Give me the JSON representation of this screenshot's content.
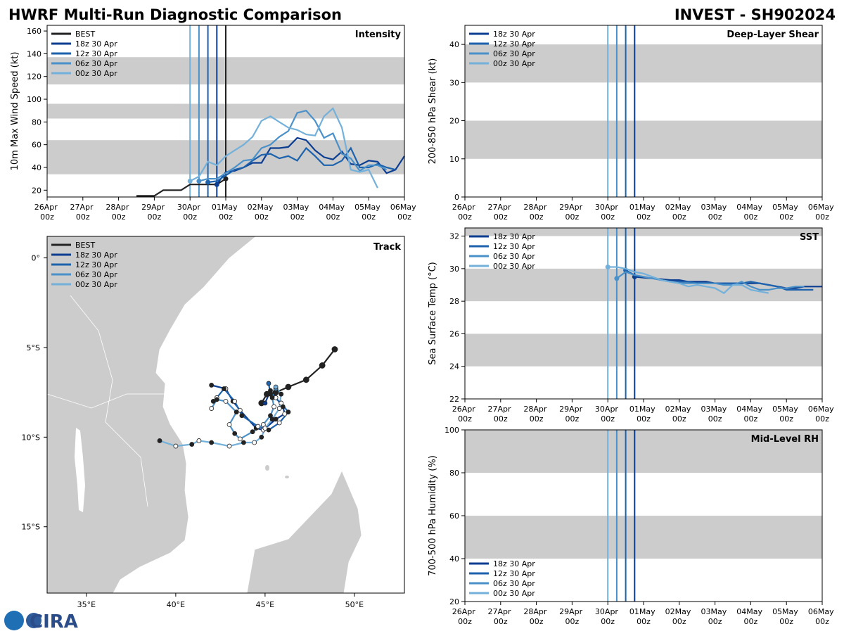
{
  "header": {
    "title": "HWRF Multi-Run Diagnostic Comparison",
    "storm": "INVEST - SH902024"
  },
  "logo": "CIRA",
  "chart_data": [
    {
      "type": "line",
      "title": "Intensity",
      "ylabel": "10m Max Wind Speed (kt)",
      "xlim": [
        "26Apr 00z",
        "06May 00z"
      ],
      "xticks": [
        "26Apr 00z",
        "27Apr 00z",
        "28Apr 00z",
        "29Apr 00z",
        "30Apr 00z",
        "01May 00z",
        "02May 00z",
        "03May 00z",
        "04May 00z",
        "05May 00z",
        "06May 00z"
      ],
      "ylim": [
        14,
        165
      ],
      "yticks": [
        20,
        40,
        60,
        80,
        100,
        120,
        140,
        160
      ],
      "bands": [
        [
          34,
          64
        ],
        [
          83,
          96
        ],
        [
          113,
          137
        ]
      ],
      "band_color": "#cccccc",
      "vlines": [
        {
          "x": "30Apr 00z",
          "color": "#74b1da"
        },
        {
          "x": "30Apr 06z",
          "color": "#4a90c9"
        },
        {
          "x": "30Apr 12z",
          "color": "#1c62ad"
        },
        {
          "x": "30Apr 18z",
          "color": "#0b3d91"
        },
        {
          "x": "01May 00z",
          "color": "#222222"
        }
      ],
      "legend": "upper left",
      "series": [
        {
          "name": "BEST",
          "color": "#222222",
          "x": [
            "28Apr 12z",
            "28Apr 18z",
            "29Apr 00z",
            "29Apr 06z",
            "29Apr 12z",
            "29Apr 18z",
            "30Apr 00z",
            "30Apr 06z",
            "30Apr 12z",
            "30Apr 18z",
            "01May 00z"
          ],
          "values": [
            15,
            15,
            15,
            20,
            20,
            20,
            25,
            25,
            25,
            25,
            30
          ]
        },
        {
          "name": "18z 30 Apr",
          "color": "#0b3d91",
          "x": [
            "30Apr 18z",
            "01May 00z",
            "01May 06z",
            "01May 12z",
            "01May 18z",
            "02May 00z",
            "02May 06z",
            "02May 12z",
            "02May 18z",
            "03May 00z",
            "03May 06z",
            "03May 12z",
            "03May 18z",
            "04May 00z",
            "04May 06z",
            "04May 12z",
            "04May 18z",
            "05May 00z",
            "05May 06z",
            "05May 12z",
            "05May 18z",
            "06May 00z"
          ],
          "values": [
            25,
            36,
            37,
            40,
            44,
            44,
            57,
            57,
            58,
            66,
            64,
            55,
            49,
            47,
            54,
            43,
            42,
            46,
            45,
            35,
            38,
            50
          ]
        },
        {
          "name": "12z 30 Apr",
          "color": "#1c62ad",
          "x": [
            "30Apr 12z",
            "30Apr 18z",
            "01May 00z",
            "01May 06z",
            "01May 12z",
            "01May 18z",
            "02May 00z",
            "02May 06z",
            "02May 12z",
            "02May 18z",
            "03May 00z",
            "03May 06z",
            "03May 12z",
            "03May 18z",
            "04May 00z",
            "04May 06z",
            "04May 12z",
            "04May 18z",
            "05May 00z",
            "05May 06z",
            "05May 12z",
            "05May 18z"
          ],
          "values": [
            27,
            28,
            33,
            38,
            40,
            46,
            51,
            52,
            48,
            50,
            46,
            57,
            50,
            42,
            42,
            46,
            57,
            40,
            40,
            43,
            40,
            38
          ]
        },
        {
          "name": "06z 30 Apr",
          "color": "#4a90c9",
          "x": [
            "30Apr 06z",
            "30Apr 12z",
            "30Apr 18z",
            "01May 00z",
            "01May 06z",
            "01May 12z",
            "01May 18z",
            "02May 00z",
            "02May 06z",
            "02May 12z",
            "02May 18z",
            "03May 00z",
            "03May 06z",
            "03May 12z",
            "03May 18z",
            "04May 00z",
            "04May 06z",
            "04May 12z",
            "04May 18z",
            "05May 00z",
            "05May 06z",
            "05May 12z"
          ],
          "values": [
            28,
            30,
            30,
            35,
            40,
            46,
            47,
            57,
            60,
            67,
            72,
            88,
            90,
            81,
            66,
            70,
            52,
            48,
            37,
            42,
            42,
            38
          ]
        },
        {
          "name": "00z 30 Apr",
          "color": "#74b1da",
          "x": [
            "30Apr 00z",
            "30Apr 06z",
            "30Apr 12z",
            "30Apr 18z",
            "01May 00z",
            "01May 06z",
            "01May 12z",
            "01May 18z",
            "02May 00z",
            "02May 06z",
            "02May 12z",
            "02May 18z",
            "03May 00z",
            "03May 06z",
            "03May 12z",
            "03May 18z",
            "04May 00z",
            "04May 06z",
            "04May 12z",
            "04May 18z",
            "05May 00z",
            "05May 06z"
          ],
          "values": [
            28,
            32,
            45,
            42,
            50,
            55,
            60,
            67,
            81,
            85,
            80,
            75,
            73,
            69,
            68,
            85,
            92,
            75,
            38,
            36,
            38,
            22
          ]
        }
      ]
    },
    {
      "type": "track",
      "title": "Track",
      "xlim": [
        32.8,
        52.8
      ],
      "ylim": [
        -18.7,
        1.2
      ],
      "xticks": [
        {
          "value": 35,
          "label": "35°E"
        },
        {
          "value": 40,
          "label": "40°E"
        },
        {
          "value": 45,
          "label": "45°E"
        },
        {
          "value": 50,
          "label": "50°E"
        }
      ],
      "yticks": [
        {
          "value": 0,
          "label": "0°"
        },
        {
          "value": -5,
          "label": "5°S"
        },
        {
          "value": -10,
          "label": "10°S"
        },
        {
          "value": -15,
          "label": "15°S"
        }
      ],
      "legend": "upper left",
      "series": [
        {
          "name": "BEST",
          "color": "#222222",
          "x": [
            48.9,
            48.2,
            47.3,
            46.3,
            45.6,
            45.1,
            44.8
          ],
          "values": [
            -5.1,
            -6.0,
            -6.8,
            -7.2,
            -7.5,
            -7.6,
            -8.1
          ]
        },
        {
          "name": "18z 30 Apr",
          "color": "#0b3d91",
          "x": [
            45.0,
            45.3,
            45.6,
            46.0,
            46.1,
            45.6,
            44.9,
            44.5,
            43.6,
            43.2,
            42.8,
            42.0
          ],
          "values": [
            -8.1,
            -7.4,
            -7.8,
            -8.3,
            -8.7,
            -9.0,
            -9.6,
            -9.5,
            -8.5,
            -8.0,
            -7.3,
            -7.1
          ]
        },
        {
          "name": "12z 30 Apr",
          "color": "#1c62ad",
          "x": [
            45.2,
            45.3,
            45.9,
            46.3,
            45.8,
            45.2,
            44.6,
            43.7,
            43.3,
            42.7,
            42.3,
            42.1
          ],
          "values": [
            -7.0,
            -7.6,
            -8.1,
            -8.6,
            -9.2,
            -9.6,
            -9.4,
            -8.8,
            -8.0,
            -7.3,
            -7.8,
            -8.0
          ]
        },
        {
          "name": "06z 30 Apr",
          "color": "#4a90c9",
          "x": [
            45.6,
            45.4,
            45.5,
            45.3,
            44.9,
            44.3,
            43.6,
            43.3,
            43.0,
            43.4,
            42.8,
            42.3,
            42.0
          ],
          "values": [
            -7.3,
            -7.8,
            -8.3,
            -8.8,
            -9.3,
            -9.7,
            -10.1,
            -9.8,
            -9.3,
            -8.6,
            -8.0,
            -7.9,
            -8.4
          ]
        },
        {
          "name": "00z 30 Apr",
          "color": "#74b1da",
          "x": [
            45.6,
            45.9,
            45.8,
            45.4,
            45.0,
            44.8,
            44.4,
            43.8,
            43.0,
            42.0,
            41.3,
            40.9,
            40.0,
            39.1
          ],
          "values": [
            -7.2,
            -7.6,
            -8.4,
            -9.0,
            -9.5,
            -10.0,
            -10.3,
            -10.3,
            -10.5,
            -10.3,
            -10.2,
            -10.4,
            -10.5,
            -10.2
          ]
        }
      ]
    },
    {
      "type": "line",
      "title": "Deep-Layer Shear",
      "ylabel": "200-850 hPa Shear (kt)",
      "xlim": [
        "26Apr 00z",
        "06May 00z"
      ],
      "xticks": [
        "26Apr 00z",
        "27Apr 00z",
        "28Apr 00z",
        "29Apr 00z",
        "30Apr 00z",
        "01May 00z",
        "02May 00z",
        "03May 00z",
        "04May 00z",
        "05May 00z",
        "06May 00z"
      ],
      "ylim": [
        0,
        45
      ],
      "yticks": [
        0,
        10,
        20,
        30,
        40
      ],
      "bands": [
        [
          10,
          20
        ],
        [
          30,
          40
        ]
      ],
      "band_color": "#cccccc",
      "vlines": [
        {
          "x": "30Apr 00z",
          "color": "#74b1da"
        },
        {
          "x": "30Apr 06z",
          "color": "#4a90c9"
        },
        {
          "x": "30Apr 12z",
          "color": "#1c62ad"
        },
        {
          "x": "30Apr 18z",
          "color": "#0b3d91"
        }
      ],
      "legend": "upper left",
      "series": [
        {
          "name": "18z 30 Apr",
          "color": "#0b3d91",
          "x": [],
          "values": []
        },
        {
          "name": "12z 30 Apr",
          "color": "#1c62ad",
          "x": [],
          "values": []
        },
        {
          "name": "06z 30 Apr",
          "color": "#4a90c9",
          "x": [],
          "values": []
        },
        {
          "name": "00z 30 Apr",
          "color": "#74b1da",
          "x": [],
          "values": []
        }
      ]
    },
    {
      "type": "line",
      "title": "SST",
      "ylabel": "Sea Surface Temp (°C)",
      "xlim": [
        "26Apr 00z",
        "06May 00z"
      ],
      "xticks": [
        "26Apr 00z",
        "27Apr 00z",
        "28Apr 00z",
        "29Apr 00z",
        "30Apr 00z",
        "01May 00z",
        "02May 00z",
        "03May 00z",
        "04May 00z",
        "05May 00z",
        "06May 00z"
      ],
      "ylim": [
        22,
        32.5
      ],
      "yticks": [
        22,
        24,
        26,
        28,
        30,
        32
      ],
      "bands": [
        [
          24,
          26
        ],
        [
          28,
          30
        ],
        [
          32,
          34
        ]
      ],
      "band_color": "#cccccc",
      "vlines": [
        {
          "x": "30Apr 00z",
          "color": "#74b1da"
        },
        {
          "x": "30Apr 06z",
          "color": "#4a90c9"
        },
        {
          "x": "30Apr 12z",
          "color": "#1c62ad"
        },
        {
          "x": "30Apr 18z",
          "color": "#0b3d91"
        }
      ],
      "legend": "upper left",
      "series": [
        {
          "name": "18z 30 Apr",
          "color": "#0b3d91",
          "x": [
            "30Apr 18z",
            "01May 00z",
            "01May 06z",
            "01May 12z",
            "01May 18z",
            "02May 00z",
            "02May 06z",
            "02May 12z",
            "02May 18z",
            "03May 00z",
            "03May 06z",
            "03May 12z",
            "03May 18z",
            "04May 00z",
            "04May 06z",
            "04May 12z",
            "04May 18z",
            "05May 00z",
            "05May 06z",
            "05May 12z",
            "05May 18z",
            "06May 00z"
          ],
          "values": [
            29.5,
            29.45,
            29.4,
            29.35,
            29.3,
            29.3,
            29.2,
            29.2,
            29.2,
            29.1,
            29.1,
            29.1,
            29.1,
            29.1,
            29.1,
            29.0,
            28.9,
            28.8,
            28.8,
            28.9,
            28.9,
            28.9
          ]
        },
        {
          "name": "12z 30 Apr",
          "color": "#1c62ad",
          "x": [
            "30Apr 12z",
            "30Apr 18z",
            "01May 00z",
            "01May 06z",
            "01May 12z",
            "01May 18z",
            "02May 00z",
            "02May 06z",
            "02May 12z",
            "02May 18z",
            "03May 00z",
            "03May 06z",
            "03May 12z",
            "03May 18z",
            "04May 00z",
            "04May 06z",
            "04May 12z",
            "04May 18z",
            "05May 00z",
            "05May 06z",
            "05May 12z",
            "05May 18z"
          ],
          "values": [
            29.9,
            29.6,
            29.5,
            29.4,
            29.3,
            29.2,
            29.2,
            29.2,
            29.1,
            29.1,
            29.1,
            29.1,
            29.1,
            29.1,
            29.2,
            29.1,
            29.0,
            28.9,
            28.7,
            28.7,
            28.7,
            28.7
          ]
        },
        {
          "name": "06z 30 Apr",
          "color": "#4a90c9",
          "x": [
            "30Apr 06z",
            "30Apr 12z",
            "30Apr 18z",
            "01May 00z",
            "01May 06z",
            "01May 12z",
            "01May 18z",
            "02May 00z",
            "02May 06z",
            "02May 12z",
            "02May 18z",
            "03May 00z",
            "03May 06z",
            "03May 12z",
            "03May 18z",
            "04May 00z",
            "04May 06z",
            "04May 12z",
            "04May 18z",
            "05May 00z",
            "05May 06z",
            "05May 12z"
          ],
          "values": [
            29.4,
            29.8,
            29.6,
            29.5,
            29.4,
            29.3,
            29.2,
            29.1,
            29.1,
            29.1,
            29.1,
            29.1,
            29.0,
            29.0,
            29.2,
            28.9,
            28.7,
            28.7,
            28.8,
            28.8,
            28.9,
            28.9
          ]
        },
        {
          "name": "00z 30 Apr",
          "color": "#74b1da",
          "x": [
            "30Apr 00z",
            "30Apr 06z",
            "30Apr 12z",
            "30Apr 18z",
            "01May 00z",
            "01May 06z",
            "01May 12z",
            "01May 18z",
            "02May 00z",
            "02May 06z",
            "02May 12z",
            "02May 18z",
            "03May 00z",
            "03May 06z",
            "03May 12z",
            "03May 18z",
            "04May 00z",
            "04May 06z",
            "04May 12z"
          ],
          "values": [
            30.1,
            30.1,
            30.0,
            29.8,
            29.7,
            29.5,
            29.3,
            29.2,
            29.1,
            28.9,
            29.0,
            28.9,
            28.8,
            28.5,
            29.0,
            29.0,
            28.7,
            28.6,
            28.5
          ]
        }
      ]
    },
    {
      "type": "line",
      "title": "Mid-Level RH",
      "ylabel": "700-500 hPa Humidity (%)",
      "xlim": [
        "26Apr 00z",
        "06May 00z"
      ],
      "xticks": [
        "26Apr 00z",
        "27Apr 00z",
        "28Apr 00z",
        "29Apr 00z",
        "30Apr 00z",
        "01May 00z",
        "02May 00z",
        "03May 00z",
        "04May 00z",
        "05May 00z",
        "06May 00z"
      ],
      "ylim": [
        20,
        100
      ],
      "yticks": [
        20,
        40,
        60,
        80,
        100
      ],
      "bands": [
        [
          40,
          60
        ],
        [
          80,
          100
        ]
      ],
      "band_color": "#cccccc",
      "vlines": [
        {
          "x": "30Apr 00z",
          "color": "#74b1da"
        },
        {
          "x": "30Apr 06z",
          "color": "#4a90c9"
        },
        {
          "x": "30Apr 12z",
          "color": "#1c62ad"
        },
        {
          "x": "30Apr 18z",
          "color": "#0b3d91"
        }
      ],
      "legend": "lower left",
      "series": [
        {
          "name": "18z 30 Apr",
          "color": "#0b3d91",
          "x": [],
          "values": []
        },
        {
          "name": "12z 30 Apr",
          "color": "#1c62ad",
          "x": [],
          "values": []
        },
        {
          "name": "06z 30 Apr",
          "color": "#4a90c9",
          "x": [],
          "values": []
        },
        {
          "name": "00z 30 Apr",
          "color": "#74b1da",
          "x": [],
          "values": []
        }
      ]
    }
  ]
}
